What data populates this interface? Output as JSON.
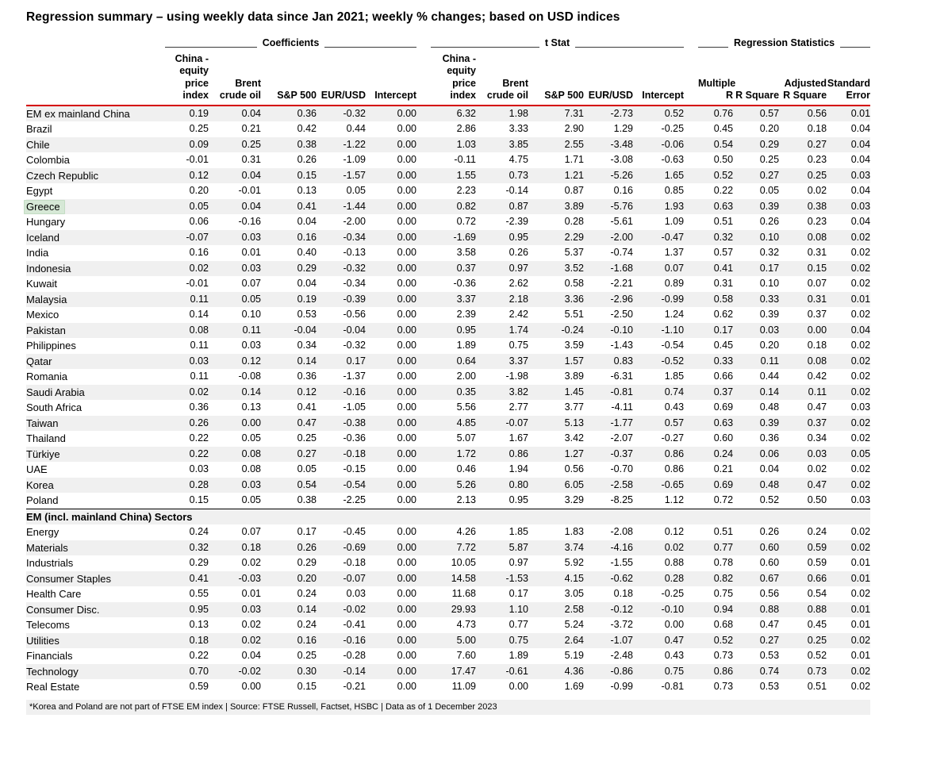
{
  "title": "Regression summary – using weekly data since Jan 2021; weekly % changes; based on USD indices",
  "colors": {
    "header_rule_red": "#d40000",
    "row_stripe_gray": "#f0f0f0",
    "greece_highlight_green": "#d6e8d6"
  },
  "table": {
    "groups": [
      {
        "label": "Coefficients"
      },
      {
        "label": "t Stat"
      },
      {
        "label": "Regression Statistics"
      }
    ],
    "columns": [
      "China - equity price index",
      "Brent crude oil",
      "S&P 500",
      "EUR/USD",
      "Intercept",
      "China - equity price index",
      "Brent crude oil",
      "S&P 500",
      "EUR/USD",
      "Intercept",
      "Multiple R",
      "R Square",
      "Adjusted R Square",
      "Standard Error"
    ],
    "country_rows": [
      {
        "label": "EM ex mainland China",
        "highlight": false,
        "values": [
          "0.19",
          "0.04",
          "0.36",
          "-0.32",
          "0.00",
          "6.32",
          "1.98",
          "7.31",
          "-2.73",
          "0.52",
          "0.76",
          "0.57",
          "0.56",
          "0.01"
        ]
      },
      {
        "label": "Brazil",
        "highlight": false,
        "values": [
          "0.25",
          "0.21",
          "0.42",
          "0.44",
          "0.00",
          "2.86",
          "3.33",
          "2.90",
          "1.29",
          "-0.25",
          "0.45",
          "0.20",
          "0.18",
          "0.04"
        ]
      },
      {
        "label": "Chile",
        "highlight": false,
        "values": [
          "0.09",
          "0.25",
          "0.38",
          "-1.22",
          "0.00",
          "1.03",
          "3.85",
          "2.55",
          "-3.48",
          "-0.06",
          "0.54",
          "0.29",
          "0.27",
          "0.04"
        ]
      },
      {
        "label": "Colombia",
        "highlight": false,
        "values": [
          "-0.01",
          "0.31",
          "0.26",
          "-1.09",
          "0.00",
          "-0.11",
          "4.75",
          "1.71",
          "-3.08",
          "-0.63",
          "0.50",
          "0.25",
          "0.23",
          "0.04"
        ]
      },
      {
        "label": "Czech Republic",
        "highlight": false,
        "values": [
          "0.12",
          "0.04",
          "0.15",
          "-1.57",
          "0.00",
          "1.55",
          "0.73",
          "1.21",
          "-5.26",
          "1.65",
          "0.52",
          "0.27",
          "0.25",
          "0.03"
        ]
      },
      {
        "label": "Egypt",
        "highlight": false,
        "values": [
          "0.20",
          "-0.01",
          "0.13",
          "0.05",
          "0.00",
          "2.23",
          "-0.14",
          "0.87",
          "0.16",
          "0.85",
          "0.22",
          "0.05",
          "0.02",
          "0.04"
        ]
      },
      {
        "label": "Greece",
        "highlight": true,
        "values": [
          "0.05",
          "0.04",
          "0.41",
          "-1.44",
          "0.00",
          "0.82",
          "0.87",
          "3.89",
          "-5.76",
          "1.93",
          "0.63",
          "0.39",
          "0.38",
          "0.03"
        ]
      },
      {
        "label": "Hungary",
        "highlight": false,
        "values": [
          "0.06",
          "-0.16",
          "0.04",
          "-2.00",
          "0.00",
          "0.72",
          "-2.39",
          "0.28",
          "-5.61",
          "1.09",
          "0.51",
          "0.26",
          "0.23",
          "0.04"
        ]
      },
      {
        "label": "Iceland",
        "highlight": false,
        "values": [
          "-0.07",
          "0.03",
          "0.16",
          "-0.34",
          "0.00",
          "-1.69",
          "0.95",
          "2.29",
          "-2.00",
          "-0.47",
          "0.32",
          "0.10",
          "0.08",
          "0.02"
        ]
      },
      {
        "label": "India",
        "highlight": false,
        "values": [
          "0.16",
          "0.01",
          "0.40",
          "-0.13",
          "0.00",
          "3.58",
          "0.26",
          "5.37",
          "-0.74",
          "1.37",
          "0.57",
          "0.32",
          "0.31",
          "0.02"
        ]
      },
      {
        "label": "Indonesia",
        "highlight": false,
        "values": [
          "0.02",
          "0.03",
          "0.29",
          "-0.32",
          "0.00",
          "0.37",
          "0.97",
          "3.52",
          "-1.68",
          "0.07",
          "0.41",
          "0.17",
          "0.15",
          "0.02"
        ]
      },
      {
        "label": "Kuwait",
        "highlight": false,
        "values": [
          "-0.01",
          "0.07",
          "0.04",
          "-0.34",
          "0.00",
          "-0.36",
          "2.62",
          "0.58",
          "-2.21",
          "0.89",
          "0.31",
          "0.10",
          "0.07",
          "0.02"
        ]
      },
      {
        "label": "Malaysia",
        "highlight": false,
        "values": [
          "0.11",
          "0.05",
          "0.19",
          "-0.39",
          "0.00",
          "3.37",
          "2.18",
          "3.36",
          "-2.96",
          "-0.99",
          "0.58",
          "0.33",
          "0.31",
          "0.01"
        ]
      },
      {
        "label": "Mexico",
        "highlight": false,
        "values": [
          "0.14",
          "0.10",
          "0.53",
          "-0.56",
          "0.00",
          "2.39",
          "2.42",
          "5.51",
          "-2.50",
          "1.24",
          "0.62",
          "0.39",
          "0.37",
          "0.02"
        ]
      },
      {
        "label": "Pakistan",
        "highlight": false,
        "values": [
          "0.08",
          "0.11",
          "-0.04",
          "-0.04",
          "0.00",
          "0.95",
          "1.74",
          "-0.24",
          "-0.10",
          "-1.10",
          "0.17",
          "0.03",
          "0.00",
          "0.04"
        ]
      },
      {
        "label": "Philippines",
        "highlight": false,
        "values": [
          "0.11",
          "0.03",
          "0.34",
          "-0.32",
          "0.00",
          "1.89",
          "0.75",
          "3.59",
          "-1.43",
          "-0.54",
          "0.45",
          "0.20",
          "0.18",
          "0.02"
        ]
      },
      {
        "label": "Qatar",
        "highlight": false,
        "values": [
          "0.03",
          "0.12",
          "0.14",
          "0.17",
          "0.00",
          "0.64",
          "3.37",
          "1.57",
          "0.83",
          "-0.52",
          "0.33",
          "0.11",
          "0.08",
          "0.02"
        ]
      },
      {
        "label": "Romania",
        "highlight": false,
        "values": [
          "0.11",
          "-0.08",
          "0.36",
          "-1.37",
          "0.00",
          "2.00",
          "-1.98",
          "3.89",
          "-6.31",
          "1.85",
          "0.66",
          "0.44",
          "0.42",
          "0.02"
        ]
      },
      {
        "label": "Saudi Arabia",
        "highlight": false,
        "values": [
          "0.02",
          "0.14",
          "0.12",
          "-0.16",
          "0.00",
          "0.35",
          "3.82",
          "1.45",
          "-0.81",
          "0.74",
          "0.37",
          "0.14",
          "0.11",
          "0.02"
        ]
      },
      {
        "label": "South Africa",
        "highlight": false,
        "values": [
          "0.36",
          "0.13",
          "0.41",
          "-1.05",
          "0.00",
          "5.56",
          "2.77",
          "3.77",
          "-4.11",
          "0.43",
          "0.69",
          "0.48",
          "0.47",
          "0.03"
        ]
      },
      {
        "label": "Taiwan",
        "highlight": false,
        "values": [
          "0.26",
          "0.00",
          "0.47",
          "-0.38",
          "0.00",
          "4.85",
          "-0.07",
          "5.13",
          "-1.77",
          "0.57",
          "0.63",
          "0.39",
          "0.37",
          "0.02"
        ]
      },
      {
        "label": "Thailand",
        "highlight": false,
        "values": [
          "0.22",
          "0.05",
          "0.25",
          "-0.36",
          "0.00",
          "5.07",
          "1.67",
          "3.42",
          "-2.07",
          "-0.27",
          "0.60",
          "0.36",
          "0.34",
          "0.02"
        ]
      },
      {
        "label": "Türkiye",
        "highlight": false,
        "values": [
          "0.22",
          "0.08",
          "0.27",
          "-0.18",
          "0.00",
          "1.72",
          "0.86",
          "1.27",
          "-0.37",
          "0.86",
          "0.24",
          "0.06",
          "0.03",
          "0.05"
        ]
      },
      {
        "label": "UAE",
        "highlight": false,
        "values": [
          "0.03",
          "0.08",
          "0.05",
          "-0.15",
          "0.00",
          "0.46",
          "1.94",
          "0.56",
          "-0.70",
          "0.86",
          "0.21",
          "0.04",
          "0.02",
          "0.02"
        ]
      },
      {
        "label": "Korea",
        "highlight": false,
        "values": [
          "0.28",
          "0.03",
          "0.54",
          "-0.54",
          "0.00",
          "5.26",
          "0.80",
          "6.05",
          "-2.58",
          "-0.65",
          "0.69",
          "0.48",
          "0.47",
          "0.02"
        ]
      },
      {
        "label": "Poland",
        "highlight": false,
        "values": [
          "0.15",
          "0.05",
          "0.38",
          "-2.25",
          "0.00",
          "2.13",
          "0.95",
          "3.29",
          "-8.25",
          "1.12",
          "0.72",
          "0.52",
          "0.50",
          "0.03"
        ]
      }
    ],
    "section_header": "EM (incl. mainland China) Sectors",
    "sector_rows": [
      {
        "label": "Energy",
        "highlight": false,
        "values": [
          "0.24",
          "0.07",
          "0.17",
          "-0.45",
          "0.00",
          "4.26",
          "1.85",
          "1.83",
          "-2.08",
          "0.12",
          "0.51",
          "0.26",
          "0.24",
          "0.02"
        ]
      },
      {
        "label": "Materials",
        "highlight": false,
        "values": [
          "0.32",
          "0.18",
          "0.26",
          "-0.69",
          "0.00",
          "7.72",
          "5.87",
          "3.74",
          "-4.16",
          "0.02",
          "0.77",
          "0.60",
          "0.59",
          "0.02"
        ]
      },
      {
        "label": "Industrials",
        "highlight": false,
        "values": [
          "0.29",
          "0.02",
          "0.29",
          "-0.18",
          "0.00",
          "10.05",
          "0.97",
          "5.92",
          "-1.55",
          "0.88",
          "0.78",
          "0.60",
          "0.59",
          "0.01"
        ]
      },
      {
        "label": "Consumer Staples",
        "highlight": false,
        "values": [
          "0.41",
          "-0.03",
          "0.20",
          "-0.07",
          "0.00",
          "14.58",
          "-1.53",
          "4.15",
          "-0.62",
          "0.28",
          "0.82",
          "0.67",
          "0.66",
          "0.01"
        ]
      },
      {
        "label": "Health Care",
        "highlight": false,
        "values": [
          "0.55",
          "0.01",
          "0.24",
          "0.03",
          "0.00",
          "11.68",
          "0.17",
          "3.05",
          "0.18",
          "-0.25",
          "0.75",
          "0.56",
          "0.54",
          "0.02"
        ]
      },
      {
        "label": "Consumer Disc.",
        "highlight": false,
        "values": [
          "0.95",
          "0.03",
          "0.14",
          "-0.02",
          "0.00",
          "29.93",
          "1.10",
          "2.58",
          "-0.12",
          "-0.10",
          "0.94",
          "0.88",
          "0.88",
          "0.01"
        ]
      },
      {
        "label": "Telecoms",
        "highlight": false,
        "values": [
          "0.13",
          "0.02",
          "0.24",
          "-0.41",
          "0.00",
          "4.73",
          "0.77",
          "5.24",
          "-3.72",
          "0.00",
          "0.68",
          "0.47",
          "0.45",
          "0.01"
        ]
      },
      {
        "label": "Utilities",
        "highlight": false,
        "values": [
          "0.18",
          "0.02",
          "0.16",
          "-0.16",
          "0.00",
          "5.00",
          "0.75",
          "2.64",
          "-1.07",
          "0.47",
          "0.52",
          "0.27",
          "0.25",
          "0.02"
        ]
      },
      {
        "label": "Financials",
        "highlight": false,
        "values": [
          "0.22",
          "0.04",
          "0.25",
          "-0.28",
          "0.00",
          "7.60",
          "1.89",
          "5.19",
          "-2.48",
          "0.43",
          "0.73",
          "0.53",
          "0.52",
          "0.01"
        ]
      },
      {
        "label": "Technology",
        "highlight": false,
        "values": [
          "0.70",
          "-0.02",
          "0.30",
          "-0.14",
          "0.00",
          "17.47",
          "-0.61",
          "4.36",
          "-0.86",
          "0.75",
          "0.86",
          "0.74",
          "0.73",
          "0.02"
        ]
      },
      {
        "label": "Real Estate",
        "highlight": false,
        "values": [
          "0.59",
          "0.00",
          "0.15",
          "-0.21",
          "0.00",
          "11.09",
          "0.00",
          "1.69",
          "-0.99",
          "-0.81",
          "0.73",
          "0.53",
          "0.51",
          "0.02"
        ]
      }
    ]
  },
  "footnote": "*Korea and Poland are not part of FTSE EM index | Source: FTSE Russell, Factset, HSBC  | Data as of 1 December 2023"
}
